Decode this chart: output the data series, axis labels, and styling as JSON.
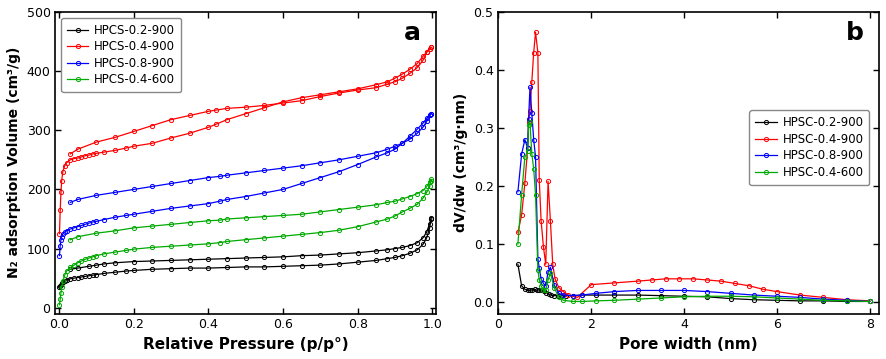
{
  "fig_width": 8.86,
  "fig_height": 3.59,
  "dpi": 100,
  "panel_a": {
    "label": "a",
    "xlabel": "Relative Pressure (p/p°)",
    "ylabel": "N₂ adsorption Volume (cm³/g)",
    "xlim": [
      -0.01,
      1.01
    ],
    "ylim": [
      -10,
      500
    ],
    "yticks": [
      0,
      100,
      200,
      300,
      400,
      500
    ],
    "xticks": [
      0.0,
      0.2,
      0.4,
      0.6,
      0.8,
      1.0
    ],
    "series": [
      {
        "label": "HPCS-0.2-900",
        "color": "#000000",
        "adsorption_x": [
          0.001,
          0.003,
          0.005,
          0.007,
          0.01,
          0.015,
          0.02,
          0.03,
          0.04,
          0.05,
          0.06,
          0.07,
          0.08,
          0.09,
          0.1,
          0.12,
          0.15,
          0.18,
          0.2,
          0.25,
          0.3,
          0.35,
          0.4,
          0.45,
          0.5,
          0.55,
          0.6,
          0.65,
          0.7,
          0.75,
          0.8,
          0.85,
          0.88,
          0.9,
          0.92,
          0.94,
          0.96,
          0.975,
          0.985,
          0.993,
          0.997
        ],
        "adsorption_y": [
          35,
          37,
          39,
          41,
          43,
          45,
          47,
          49,
          50,
          51,
          52,
          53,
          54,
          55,
          56,
          58,
          60,
          62,
          63,
          65,
          66,
          67,
          67,
          68,
          69,
          69,
          70,
          71,
          72,
          74,
          77,
          80,
          83,
          85,
          88,
          92,
          98,
          107,
          118,
          135,
          150
        ],
        "desorption_x": [
          0.997,
          0.993,
          0.985,
          0.975,
          0.96,
          0.94,
          0.92,
          0.9,
          0.88,
          0.85,
          0.8,
          0.75,
          0.7,
          0.65,
          0.6,
          0.55,
          0.5,
          0.45,
          0.4,
          0.35,
          0.3,
          0.25,
          0.2,
          0.15,
          0.12,
          0.1,
          0.08,
          0.05,
          0.03
        ],
        "desorption_y": [
          152,
          142,
          128,
          118,
          110,
          105,
          102,
          100,
          98,
          96,
          93,
          91,
          89,
          88,
          86,
          85,
          84,
          83,
          82,
          81,
          80,
          79,
          78,
          76,
          74,
          72,
          70,
          67,
          65
        ]
      },
      {
        "label": "HPCS-0.4-900",
        "color": "#ff0000",
        "adsorption_x": [
          0.001,
          0.003,
          0.005,
          0.007,
          0.01,
          0.015,
          0.02,
          0.03,
          0.04,
          0.05,
          0.06,
          0.07,
          0.08,
          0.09,
          0.1,
          0.12,
          0.15,
          0.18,
          0.2,
          0.25,
          0.3,
          0.35,
          0.4,
          0.42,
          0.45,
          0.5,
          0.55,
          0.6,
          0.65,
          0.7,
          0.75,
          0.8,
          0.85,
          0.88,
          0.9,
          0.92,
          0.94,
          0.96,
          0.975,
          0.985,
          0.993,
          0.997
        ],
        "adsorption_y": [
          125,
          165,
          195,
          215,
          230,
          240,
          245,
          250,
          252,
          253,
          255,
          257,
          258,
          260,
          261,
          263,
          266,
          270,
          273,
          278,
          287,
          295,
          305,
          310,
          318,
          328,
          338,
          348,
          355,
          360,
          365,
          370,
          377,
          382,
          388,
          395,
          403,
          413,
          425,
          432,
          438,
          440
        ],
        "desorption_x": [
          0.997,
          0.993,
          0.985,
          0.975,
          0.96,
          0.94,
          0.92,
          0.9,
          0.88,
          0.85,
          0.8,
          0.75,
          0.7,
          0.65,
          0.6,
          0.55,
          0.5,
          0.45,
          0.42,
          0.4,
          0.35,
          0.3,
          0.25,
          0.2,
          0.15,
          0.1,
          0.05,
          0.03
        ],
        "desorption_y": [
          440,
          438,
          432,
          418,
          406,
          396,
          388,
          382,
          378,
          372,
          368,
          363,
          357,
          350,
          346,
          342,
          339,
          337,
          334,
          332,
          325,
          318,
          308,
          298,
          288,
          280,
          268,
          260
        ]
      },
      {
        "label": "HPCS-0.8-900",
        "color": "#0000ff",
        "adsorption_x": [
          0.001,
          0.003,
          0.005,
          0.007,
          0.01,
          0.015,
          0.02,
          0.03,
          0.04,
          0.05,
          0.06,
          0.07,
          0.08,
          0.09,
          0.1,
          0.12,
          0.15,
          0.18,
          0.2,
          0.25,
          0.3,
          0.35,
          0.4,
          0.43,
          0.45,
          0.5,
          0.55,
          0.6,
          0.65,
          0.7,
          0.75,
          0.8,
          0.85,
          0.88,
          0.9,
          0.92,
          0.94,
          0.96,
          0.975,
          0.985,
          0.993,
          0.997
        ],
        "adsorption_y": [
          88,
          105,
          115,
          120,
          125,
          128,
          130,
          133,
          135,
          137,
          139,
          141,
          143,
          145,
          146,
          149,
          153,
          156,
          158,
          163,
          168,
          172,
          176,
          180,
          183,
          188,
          194,
          200,
          210,
          220,
          230,
          242,
          255,
          262,
          268,
          278,
          290,
          302,
          312,
          320,
          326,
          328
        ],
        "desorption_x": [
          0.997,
          0.993,
          0.985,
          0.975,
          0.96,
          0.94,
          0.92,
          0.9,
          0.88,
          0.85,
          0.8,
          0.75,
          0.7,
          0.65,
          0.6,
          0.55,
          0.5,
          0.45,
          0.43,
          0.4,
          0.35,
          0.3,
          0.25,
          0.2,
          0.15,
          0.1,
          0.05,
          0.03
        ],
        "desorption_y": [
          328,
          325,
          315,
          305,
          295,
          285,
          278,
          273,
          268,
          262,
          256,
          250,
          245,
          240,
          236,
          232,
          228,
          224,
          222,
          220,
          215,
          210,
          205,
          200,
          195,
          190,
          183,
          178
        ]
      },
      {
        "label": "HPCS-0.4-600",
        "color": "#00aa00",
        "adsorption_x": [
          0.001,
          0.003,
          0.005,
          0.007,
          0.01,
          0.015,
          0.02,
          0.03,
          0.04,
          0.05,
          0.06,
          0.07,
          0.08,
          0.09,
          0.1,
          0.12,
          0.15,
          0.18,
          0.2,
          0.25,
          0.3,
          0.35,
          0.4,
          0.43,
          0.45,
          0.5,
          0.55,
          0.6,
          0.65,
          0.7,
          0.75,
          0.8,
          0.85,
          0.88,
          0.9,
          0.92,
          0.94,
          0.96,
          0.975,
          0.985,
          0.993,
          0.997
        ],
        "adsorption_y": [
          5,
          15,
          25,
          35,
          45,
          55,
          62,
          68,
          72,
          76,
          79,
          82,
          84,
          86,
          88,
          91,
          94,
          97,
          99,
          102,
          104,
          106,
          108,
          110,
          112,
          115,
          118,
          121,
          124,
          127,
          131,
          137,
          145,
          150,
          155,
          162,
          168,
          175,
          185,
          195,
          205,
          215
        ],
        "desorption_x": [
          0.997,
          0.993,
          0.985,
          0.975,
          0.96,
          0.94,
          0.92,
          0.9,
          0.88,
          0.85,
          0.8,
          0.75,
          0.7,
          0.65,
          0.6,
          0.55,
          0.5,
          0.45,
          0.43,
          0.4,
          0.35,
          0.3,
          0.25,
          0.2,
          0.15,
          0.1,
          0.05,
          0.03
        ],
        "desorption_y": [
          217,
          213,
          205,
          198,
          193,
          188,
          184,
          180,
          178,
          174,
          170,
          166,
          162,
          158,
          156,
          154,
          152,
          150,
          148,
          147,
          144,
          141,
          138,
          135,
          130,
          126,
          120,
          115
        ]
      }
    ]
  },
  "panel_b": {
    "label": "b",
    "xlabel": "Pore width (nm)",
    "ylabel": "dV/dw (cm³/g·nm)",
    "xlim": [
      0.3,
      8.2
    ],
    "ylim": [
      -0.02,
      0.5
    ],
    "yticks": [
      0.0,
      0.1,
      0.2,
      0.3,
      0.4,
      0.5
    ],
    "xticks": [
      0,
      2,
      4,
      6,
      8
    ],
    "series": [
      {
        "label": "HPSC-0.2-900",
        "color": "#000000",
        "x": [
          0.42,
          0.5,
          0.57,
          0.63,
          0.68,
          0.73,
          0.78,
          0.83,
          0.88,
          0.93,
          0.98,
          1.03,
          1.08,
          1.13,
          1.2,
          1.28,
          1.35,
          1.45,
          1.6,
          1.8,
          2.1,
          2.5,
          3.0,
          3.5,
          4.0,
          4.5,
          5.0,
          5.5,
          6.0,
          6.5,
          7.0,
          7.5,
          8.0
        ],
        "y": [
          0.065,
          0.028,
          0.022,
          0.02,
          0.02,
          0.021,
          0.022,
          0.02,
          0.021,
          0.02,
          0.019,
          0.016,
          0.014,
          0.012,
          0.011,
          0.011,
          0.011,
          0.011,
          0.011,
          0.012,
          0.012,
          0.012,
          0.012,
          0.011,
          0.01,
          0.009,
          0.006,
          0.004,
          0.003,
          0.002,
          0.002,
          0.001,
          0.001
        ]
      },
      {
        "label": "HPSC-0.4-900",
        "color": "#ff0000",
        "x": [
          0.42,
          0.5,
          0.57,
          0.63,
          0.65,
          0.68,
          0.72,
          0.76,
          0.8,
          0.85,
          0.88,
          0.92,
          0.97,
          1.02,
          1.07,
          1.12,
          1.17,
          1.22,
          1.3,
          1.4,
          1.5,
          1.7,
          2.0,
          2.5,
          3.0,
          3.3,
          3.6,
          3.9,
          4.2,
          4.5,
          4.8,
          5.1,
          5.4,
          5.7,
          6.0,
          6.5,
          7.0,
          7.5,
          8.0
        ],
        "y": [
          0.12,
          0.15,
          0.205,
          0.265,
          0.31,
          0.33,
          0.38,
          0.43,
          0.465,
          0.43,
          0.21,
          0.14,
          0.095,
          0.065,
          0.208,
          0.14,
          0.065,
          0.04,
          0.025,
          0.018,
          0.012,
          0.008,
          0.03,
          0.033,
          0.036,
          0.038,
          0.04,
          0.04,
          0.04,
          0.038,
          0.036,
          0.032,
          0.028,
          0.022,
          0.018,
          0.012,
          0.008,
          0.004,
          0.002
        ]
      },
      {
        "label": "HPSC-0.8-900",
        "color": "#0000ff",
        "x": [
          0.42,
          0.5,
          0.57,
          0.63,
          0.65,
          0.68,
          0.72,
          0.76,
          0.8,
          0.85,
          0.88,
          0.92,
          0.97,
          1.02,
          1.07,
          1.12,
          1.2,
          1.3,
          1.4,
          1.6,
          1.8,
          2.1,
          2.5,
          3.0,
          3.5,
          4.0,
          4.5,
          5.0,
          5.5,
          6.0,
          6.5,
          7.0,
          7.5,
          8.0
        ],
        "y": [
          0.19,
          0.255,
          0.28,
          0.265,
          0.315,
          0.37,
          0.325,
          0.28,
          0.25,
          0.075,
          0.058,
          0.04,
          0.032,
          0.028,
          0.052,
          0.06,
          0.03,
          0.015,
          0.012,
          0.011,
          0.012,
          0.015,
          0.018,
          0.02,
          0.02,
          0.02,
          0.018,
          0.015,
          0.012,
          0.01,
          0.008,
          0.005,
          0.003,
          0.001
        ]
      },
      {
        "label": "HPSC-0.4-600",
        "color": "#00aa00",
        "x": [
          0.42,
          0.5,
          0.57,
          0.63,
          0.65,
          0.68,
          0.72,
          0.76,
          0.8,
          0.85,
          0.88,
          0.92,
          0.97,
          1.02,
          1.07,
          1.12,
          1.2,
          1.3,
          1.4,
          1.6,
          1.8,
          2.1,
          2.5,
          3.0,
          3.5,
          4.0,
          4.5,
          5.0,
          5.5,
          6.0,
          6.5,
          7.0,
          7.5,
          8.0
        ],
        "y": [
          0.1,
          0.185,
          0.25,
          0.26,
          0.305,
          0.31,
          0.255,
          0.23,
          0.185,
          0.055,
          0.038,
          0.028,
          0.02,
          0.02,
          0.038,
          0.05,
          0.025,
          0.008,
          0.003,
          0.001,
          0.001,
          0.002,
          0.003,
          0.005,
          0.007,
          0.009,
          0.01,
          0.01,
          0.009,
          0.007,
          0.005,
          0.003,
          0.002,
          0.001
        ]
      }
    ]
  }
}
